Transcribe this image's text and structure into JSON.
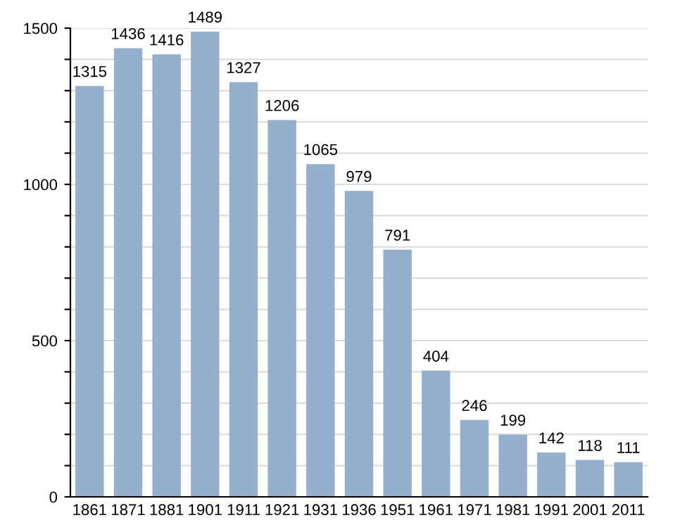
{
  "chart_data": {
    "type": "bar",
    "categories": [
      "1861",
      "1871",
      "1881",
      "1901",
      "1911",
      "1921",
      "1931",
      "1936",
      "1951",
      "1961",
      "1971",
      "1981",
      "1991",
      "2001",
      "2011"
    ],
    "values": [
      1315,
      1436,
      1416,
      1489,
      1327,
      1206,
      1065,
      979,
      791,
      404,
      246,
      199,
      142,
      118,
      111
    ],
    "color": "#95b0cc",
    "ylim": [
      0,
      1500
    ],
    "yticks": [
      0,
      {
        "value": 100,
        "label": null
      },
      {
        "value": 200,
        "label": null
      },
      {
        "value": 300,
        "label": null
      },
      {
        "value": 400,
        "label": null
      },
      500,
      {
        "value": 600,
        "label": null
      },
      {
        "value": 700,
        "label": null
      },
      {
        "value": 800,
        "label": null
      },
      {
        "value": 900,
        "label": null
      },
      1000,
      {
        "value": 1100,
        "label": null
      },
      {
        "value": 1200,
        "label": null
      },
      {
        "value": 1300,
        "label": null
      },
      {
        "value": 1400,
        "label": null
      },
      1500
    ],
    "grid": "y",
    "data_labels": true
  }
}
